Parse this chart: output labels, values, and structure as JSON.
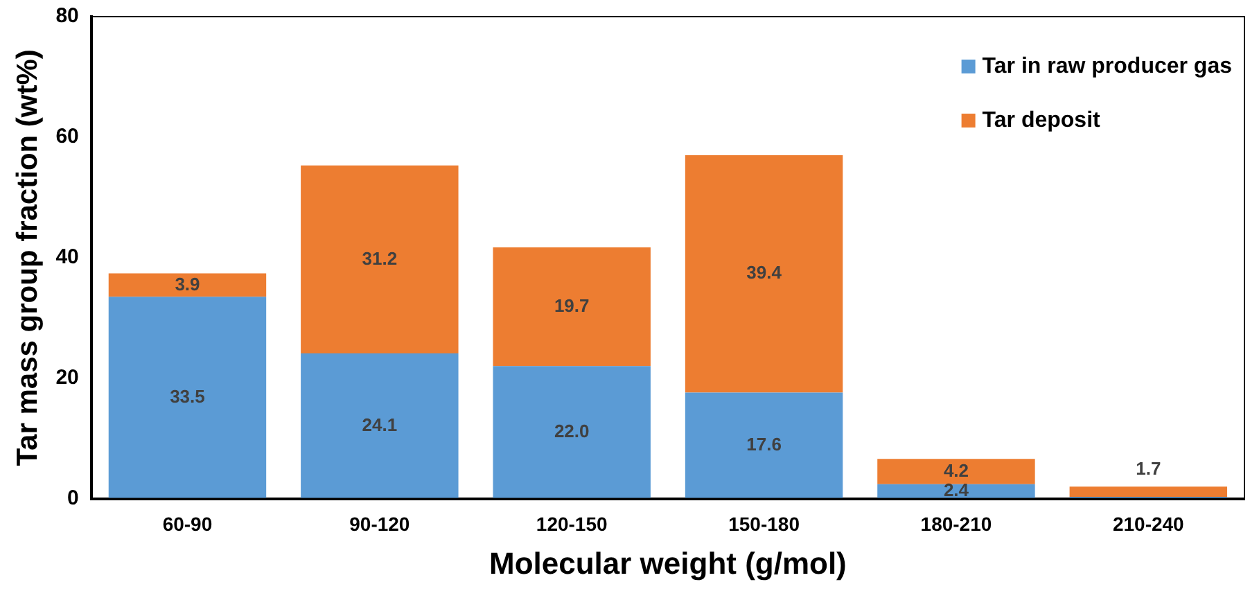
{
  "chart_data": {
    "type": "bar",
    "stacked": true,
    "xlabel": "Molecular weight (g/mol)",
    "ylabel": "Tar mass group fraction (wt%)",
    "categories": [
      "60-90",
      "90-120",
      "120-150",
      "150-180",
      "180-210",
      "210-240"
    ],
    "series": [
      {
        "name": "Tar in raw producer gas",
        "color": "#5b9bd5",
        "values": [
          33.5,
          24.1,
          22.0,
          17.6,
          2.4,
          0.3
        ],
        "value_labels": [
          "33.5",
          "24.1",
          "22.0",
          "17.6",
          "2.4",
          null
        ]
      },
      {
        "name": "Tar deposit",
        "color": "#ed7d31",
        "values": [
          3.9,
          31.2,
          19.7,
          39.4,
          4.2,
          1.7
        ],
        "value_labels": [
          "3.9",
          "31.2",
          "19.7",
          "39.4",
          "4.2",
          "1.7"
        ]
      }
    ],
    "ylim": [
      0,
      80
    ],
    "yticks": [
      0,
      20,
      40,
      60,
      80
    ],
    "grid": false,
    "legend": "top right"
  }
}
